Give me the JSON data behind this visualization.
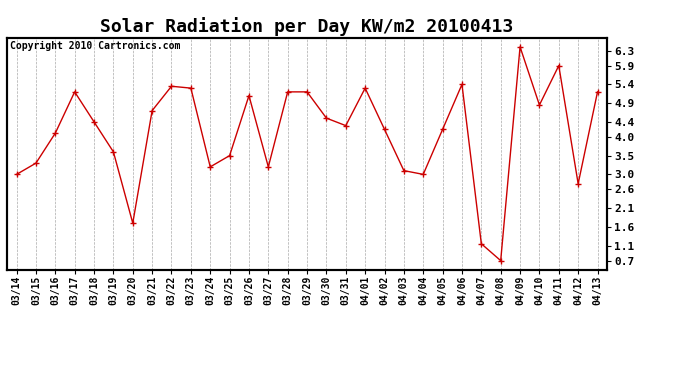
{
  "title": "Solar Radiation per Day KW/m2 20100413",
  "copyright": "Copyright 2010 Cartronics.com",
  "dates": [
    "03/14",
    "03/15",
    "03/16",
    "03/17",
    "03/18",
    "03/19",
    "03/20",
    "03/21",
    "03/22",
    "03/23",
    "03/24",
    "03/25",
    "03/26",
    "03/27",
    "03/28",
    "03/29",
    "03/30",
    "03/31",
    "04/01",
    "04/02",
    "04/03",
    "04/04",
    "04/05",
    "04/06",
    "04/07",
    "04/08",
    "04/09",
    "04/10",
    "04/11",
    "04/12",
    "04/13"
  ],
  "values": [
    3.0,
    3.3,
    4.1,
    5.2,
    4.4,
    3.6,
    1.7,
    4.7,
    5.35,
    5.3,
    3.2,
    3.5,
    5.1,
    3.2,
    5.2,
    5.2,
    4.5,
    4.3,
    5.3,
    4.2,
    3.1,
    3.0,
    4.2,
    5.4,
    1.15,
    0.7,
    6.4,
    4.85,
    5.9,
    2.75,
    5.2
  ],
  "line_color": "#cc0000",
  "bg_color": "#ffffff",
  "grid_color": "#aaaaaa",
  "yticks": [
    0.7,
    1.1,
    1.6,
    2.1,
    2.6,
    3.0,
    3.5,
    4.0,
    4.4,
    4.9,
    5.4,
    5.9,
    6.3
  ],
  "ylim": [
    0.45,
    6.65
  ],
  "title_fontsize": 13,
  "copyright_fontsize": 7,
  "tick_fontsize": 7,
  "ytick_fontsize": 8
}
